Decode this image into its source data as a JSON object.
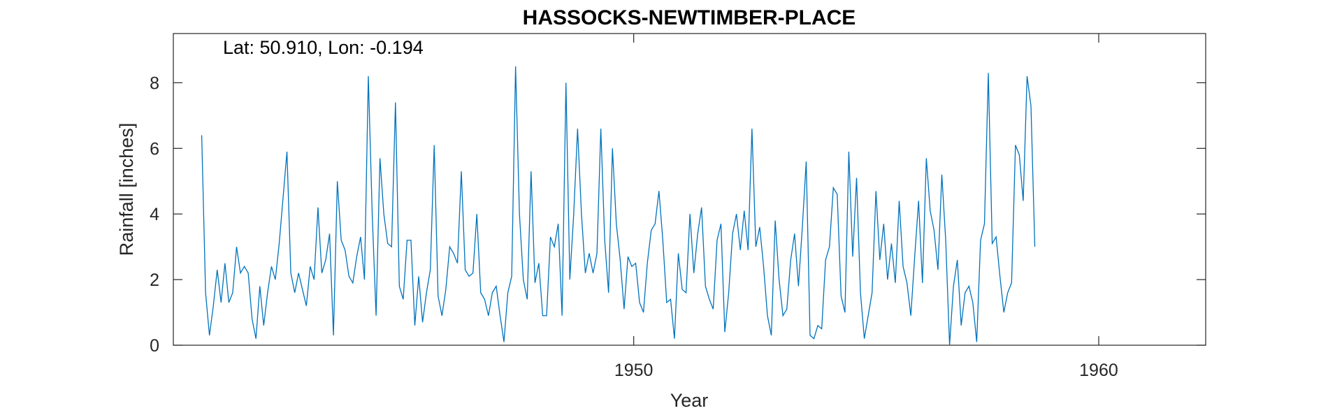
{
  "chart_data": {
    "type": "line",
    "title": "HASSOCKS-NEWTIMBER-PLACE",
    "xlabel": "Year",
    "ylabel": "Rainfall [inches]",
    "annotation": "Lat: 50.910, Lon: -0.194",
    "xlim": [
      1940.1,
      1962.3
    ],
    "ylim": [
      0,
      9.5
    ],
    "xticks": [
      1950,
      1960
    ],
    "xtick_labels": [
      "1950",
      "1960"
    ],
    "yticks": [
      0,
      2,
      4,
      6,
      8
    ],
    "ytick_labels": [
      "0",
      "2",
      "4",
      "6",
      "8"
    ],
    "grid": false,
    "x_start": 1940.71,
    "x_step": 0.08333,
    "series": [
      {
        "color": "#0072BD",
        "values": [
          6.4,
          1.6,
          0.3,
          1.2,
          2.3,
          1.3,
          2.5,
          1.3,
          1.6,
          3.0,
          2.2,
          2.4,
          2.2,
          0.8,
          0.2,
          1.8,
          0.6,
          1.6,
          2.4,
          2.0,
          3.1,
          4.5,
          5.9,
          2.2,
          1.6,
          2.2,
          1.7,
          1.2,
          2.4,
          2.0,
          4.2,
          2.2,
          2.6,
          3.4,
          0.3,
          5.0,
          3.2,
          2.9,
          2.1,
          1.9,
          2.7,
          3.3,
          2.0,
          8.2,
          4.0,
          0.9,
          5.7,
          4.0,
          3.1,
          3.0,
          7.4,
          1.8,
          1.4,
          3.2,
          3.2,
          0.6,
          2.1,
          0.7,
          1.6,
          2.3,
          6.1,
          1.5,
          0.9,
          1.7,
          3.0,
          2.8,
          2.5,
          5.3,
          2.3,
          2.1,
          2.2,
          4.0,
          1.6,
          1.4,
          0.9,
          1.6,
          1.8,
          0.9,
          0.1,
          1.6,
          2.1,
          8.5,
          4.0,
          2.0,
          1.4,
          5.3,
          1.9,
          2.5,
          0.9,
          0.9,
          3.3,
          3.0,
          3.7,
          0.9,
          8.0,
          2.0,
          4.0,
          6.6,
          4.0,
          2.2,
          2.8,
          2.2,
          2.8,
          6.6,
          3.2,
          1.6,
          6.0,
          3.7,
          2.6,
          1.1,
          2.7,
          2.4,
          2.5,
          1.3,
          1.0,
          2.5,
          3.5,
          3.7,
          4.7,
          3.2,
          1.3,
          1.4,
          0.2,
          2.8,
          1.7,
          1.6,
          4.0,
          2.2,
          3.4,
          4.2,
          1.8,
          1.4,
          1.1,
          3.2,
          3.7,
          0.4,
          1.6,
          3.4,
          4.0,
          2.9,
          4.1,
          2.9,
          6.6,
          3.0,
          3.6,
          2.4,
          0.9,
          0.3,
          3.8,
          2.0,
          0.9,
          1.1,
          2.6,
          3.4,
          1.8,
          3.6,
          5.6,
          0.3,
          0.2,
          0.6,
          0.5,
          2.6,
          3.0,
          4.8,
          4.6,
          1.5,
          1.0,
          5.9,
          2.7,
          5.1,
          1.6,
          0.2,
          0.9,
          1.6,
          4.7,
          2.6,
          3.7,
          2.0,
          3.1,
          1.9,
          4.4,
          2.4,
          1.9,
          0.9,
          2.7,
          4.4,
          1.9,
          5.7,
          4.1,
          3.5,
          2.3,
          5.2,
          3.2,
          0.0,
          1.8,
          2.6,
          0.6,
          1.6,
          1.8,
          1.3,
          0.1,
          3.2,
          3.7,
          8.3,
          3.1,
          3.3,
          2.1,
          1.0,
          1.6,
          1.9,
          6.1,
          5.8,
          4.4,
          8.2,
          7.3,
          3.0
        ]
      }
    ]
  }
}
